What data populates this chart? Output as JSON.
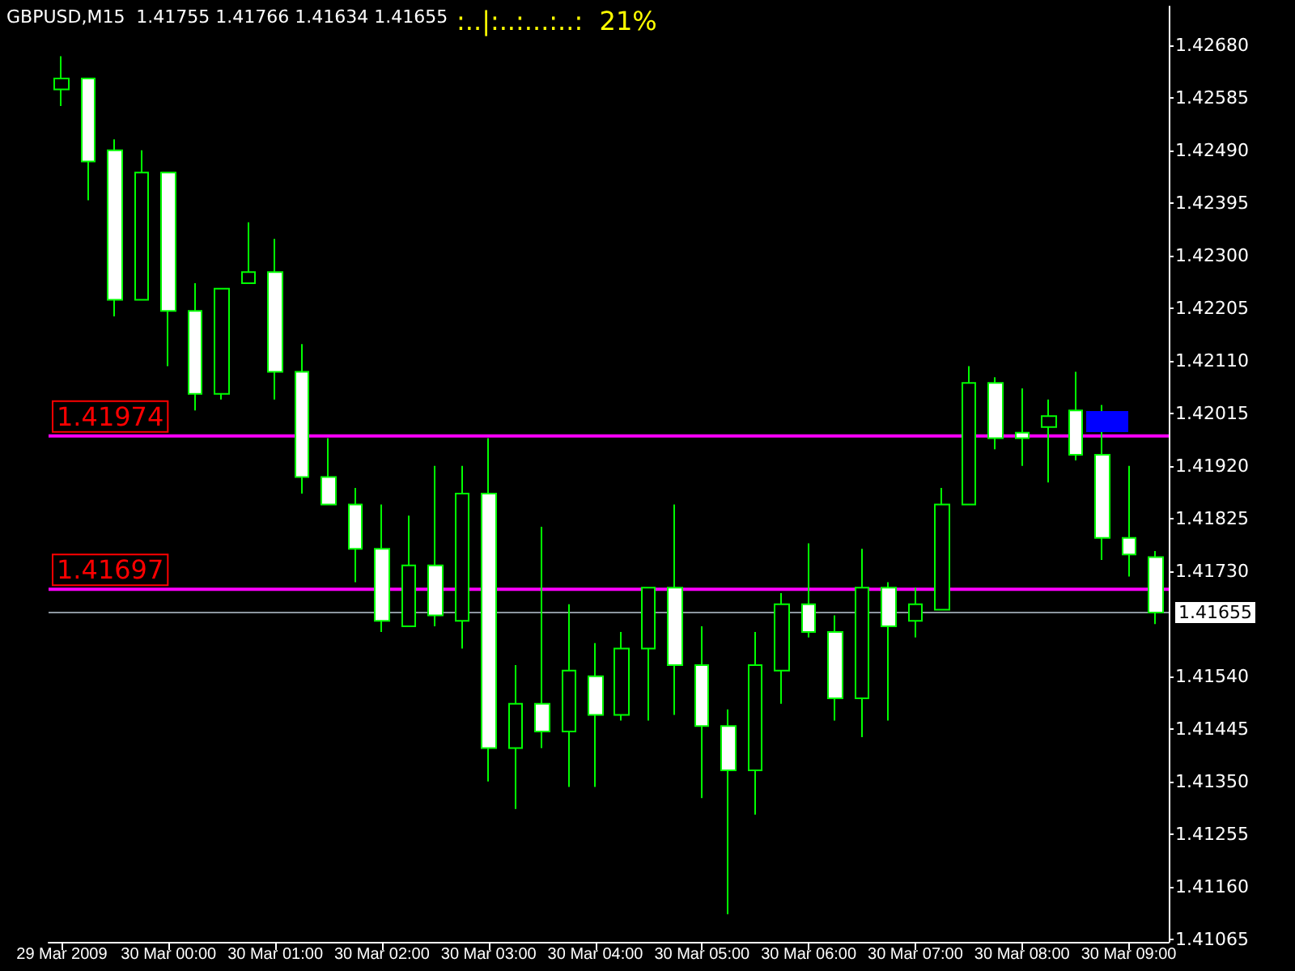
{
  "chart_data": {
    "type": "candlestick",
    "title": "GBPUSD,M15  1.41755 1.41766 1.41634 1.41655",
    "annotations": [
      ":..|:..:...:..:  21%"
    ],
    "categories": [
      "29 Mar 2009",
      null,
      null,
      null,
      "30 Mar 00:00",
      null,
      null,
      null,
      "30 Mar 01:00",
      null,
      null,
      null,
      "30 Mar 02:00",
      null,
      null,
      null,
      "30 Mar 03:00",
      null,
      null,
      null,
      "30 Mar 04:00",
      null,
      null,
      null,
      "30 Mar 05:00",
      null,
      null,
      null,
      "30 Mar 06:00",
      null,
      null,
      null,
      "30 Mar 07:00",
      null,
      null,
      null,
      "30 Mar 08:00",
      null,
      null,
      null,
      "30 Mar 09:00",
      null
    ],
    "ohlc": [
      [
        1.426,
        1.4266,
        1.4257,
        1.4262
      ],
      [
        1.4262,
        1.4262,
        1.424,
        1.4247
      ],
      [
        1.4249,
        1.4251,
        1.4219,
        1.4222
      ],
      [
        1.4222,
        1.4249,
        1.4222,
        1.4245
      ],
      [
        1.4245,
        1.4245,
        1.421,
        1.422
      ],
      [
        1.422,
        1.4225,
        1.4202,
        1.4205
      ],
      [
        1.4205,
        1.4224,
        1.4204,
        1.4224
      ],
      [
        1.4225,
        1.4236,
        1.4225,
        1.4227
      ],
      [
        1.4227,
        1.4233,
        1.4204,
        1.4209
      ],
      [
        1.4209,
        1.4214,
        1.4187,
        1.419
      ],
      [
        1.419,
        1.4197,
        1.4185,
        1.4185
      ],
      [
        1.4185,
        1.4188,
        1.4171,
        1.4177
      ],
      [
        1.4177,
        1.4185,
        1.4162,
        1.4164
      ],
      [
        1.4163,
        1.4183,
        1.4163,
        1.4174
      ],
      [
        1.4174,
        1.4192,
        1.4163,
        1.4165
      ],
      [
        1.4164,
        1.4192,
        1.4159,
        1.4187
      ],
      [
        1.4187,
        1.4197,
        1.4135,
        1.4141
      ],
      [
        1.4141,
        1.4156,
        1.413,
        1.4149
      ],
      [
        1.4149,
        1.4181,
        1.4141,
        1.4144
      ],
      [
        1.4144,
        1.4167,
        1.4134,
        1.4155
      ],
      [
        1.4154,
        1.416,
        1.4134,
        1.4147
      ],
      [
        1.4147,
        1.4162,
        1.4146,
        1.4159
      ],
      [
        1.4159,
        1.417,
        1.4146,
        1.417
      ],
      [
        1.417,
        1.4185,
        1.4147,
        1.4156
      ],
      [
        1.4156,
        1.4163,
        1.4132,
        1.4145
      ],
      [
        1.4145,
        1.4148,
        1.4111,
        1.4137
      ],
      [
        1.4137,
        1.4162,
        1.4129,
        1.4156
      ],
      [
        1.4155,
        1.4169,
        1.4149,
        1.4167
      ],
      [
        1.4167,
        1.4178,
        1.4161,
        1.4162
      ],
      [
        1.4162,
        1.4165,
        1.4146,
        1.415
      ],
      [
        1.415,
        1.4177,
        1.4143,
        1.417
      ],
      [
        1.417,
        1.4171,
        1.4146,
        1.4163
      ],
      [
        1.4164,
        1.417,
        1.4161,
        1.4167
      ],
      [
        1.4166,
        1.4188,
        1.4166,
        1.4185
      ],
      [
        1.4185,
        1.421,
        1.4185,
        1.4207
      ],
      [
        1.4207,
        1.4208,
        1.4195,
        1.4197
      ],
      [
        1.4198,
        1.4206,
        1.4192,
        1.4197
      ],
      [
        1.4199,
        1.4204,
        1.4189,
        1.4201
      ],
      [
        1.4202,
        1.4209,
        1.4193,
        1.4194
      ],
      [
        1.4194,
        1.4203,
        1.4175,
        1.4179
      ],
      [
        1.4179,
        1.4192,
        1.4172,
        1.4176
      ],
      [
        1.41755,
        1.41766,
        1.41634,
        1.41655
      ]
    ],
    "ylim": [
      1.4106,
      1.4275
    ],
    "yticks": [
      {
        "value": 1.4268,
        "label": "1.42680"
      },
      {
        "value": 1.42585,
        "label": "1.42585"
      },
      {
        "value": 1.4249,
        "label": "1.42490"
      },
      {
        "value": 1.42395,
        "label": "1.42395"
      },
      {
        "value": 1.423,
        "label": "1.42300"
      },
      {
        "value": 1.42205,
        "label": "1.42205"
      },
      {
        "value": 1.4211,
        "label": "1.42110"
      },
      {
        "value": 1.42015,
        "label": "1.42015"
      },
      {
        "value": 1.4192,
        "label": "1.41920"
      },
      {
        "value": 1.41825,
        "label": "1.41825"
      },
      {
        "value": 1.4173,
        "label": "1.41730"
      },
      {
        "value": 1.4154,
        "label": "1.41540"
      },
      {
        "value": 1.41445,
        "label": "1.41445"
      },
      {
        "value": 1.4135,
        "label": "1.41350"
      },
      {
        "value": 1.41255,
        "label": "1.41255"
      },
      {
        "value": 1.4116,
        "label": "1.41160"
      },
      {
        "value": 1.41065,
        "label": "1.41065"
      }
    ],
    "ref_lines": [
      {
        "axis": "y",
        "value": 1.41655,
        "label": "1.41655",
        "color": "#8c96a0"
      },
      {
        "axis": "y",
        "value": 1.41697,
        "label": "1.41697",
        "color": "#ff00ff"
      },
      {
        "axis": "y",
        "value": 1.41974,
        "label": "1.41974",
        "color": "#ff00ff"
      }
    ],
    "grid": false
  }
}
